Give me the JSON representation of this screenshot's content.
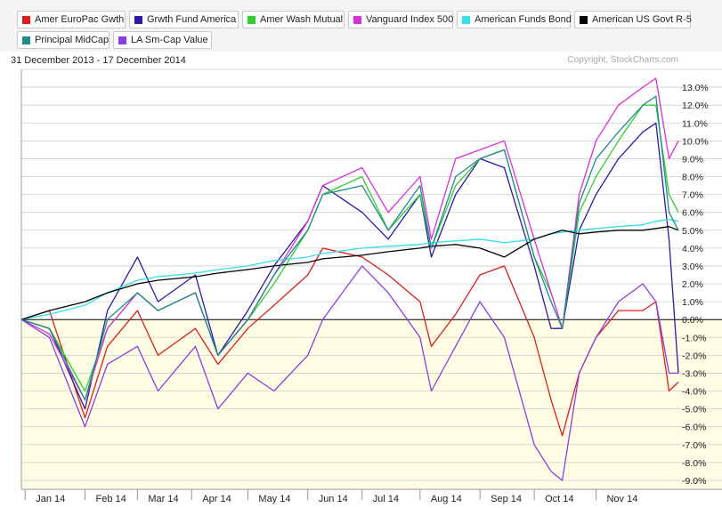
{
  "legend": {
    "items": [
      {
        "label": "Amer EuroPac Gwth",
        "color": "#dd1e1e"
      },
      {
        "label": "Grwth Fund America",
        "color": "#2a1aa6"
      },
      {
        "label": "Amer Wash Mutual",
        "color": "#2fcf2f"
      },
      {
        "label": "Vanguard Index 500",
        "color": "#dd2ddd"
      },
      {
        "label": "American Funds Bond",
        "color": "#35dfe3"
      },
      {
        "label": "American US Govt R-5",
        "color": "#000000"
      },
      {
        "label": "Principal MidCap",
        "color": "#1f8b8b"
      },
      {
        "label": "LA Sm-Cap Value",
        "color": "#8a3ee0"
      }
    ]
  },
  "chart_data": {
    "type": "line",
    "date_range": "31 December 2013 - 17 December 2014",
    "copyright": "Copyright, StockCharts.com",
    "y_unit": "%",
    "ylim": [
      -9.5,
      14
    ],
    "y_ticks": [
      "13.0%",
      "12.0%",
      "11.0%",
      "10.0%",
      "9.0%",
      "8.0%",
      "7.0%",
      "6.0%",
      "5.0%",
      "4.0%",
      "3.0%",
      "2.0%",
      "1.0%",
      "0.0%",
      "-1.0%",
      "-2.0%",
      "-3.0%",
      "-4.0%",
      "-5.0%",
      "-6.0%",
      "-7.0%",
      "-8.0%",
      "-9.0%"
    ],
    "x_ticks": [
      "Jan 14",
      "Feb 14",
      "Mar 14",
      "Apr 14",
      "May 14",
      "Jun 14",
      "Jul 14",
      "Aug 14",
      "Sep 14",
      "Oct 14",
      "Nov 14"
    ],
    "x_tick_dates": [
      "2014-01-02",
      "2014-02-03",
      "2014-03-03",
      "2014-04-01",
      "2014-05-01",
      "2014-06-02",
      "2014-07-01",
      "2014-08-01",
      "2014-09-02",
      "2014-10-01",
      "2014-11-03"
    ],
    "x_range": [
      "2013-12-31",
      "2014-12-17"
    ],
    "grid": true,
    "background_split_at": 0,
    "series": [
      {
        "name": "Amer EuroPac Gwth",
        "color": "#dd1e1e",
        "x": [
          "2013-12-31",
          "2014-01-15",
          "2014-02-03",
          "2014-02-15",
          "2014-03-03",
          "2014-03-14",
          "2014-04-03",
          "2014-04-15",
          "2014-05-01",
          "2014-05-15",
          "2014-06-02",
          "2014-06-10",
          "2014-07-01",
          "2014-07-15",
          "2014-08-01",
          "2014-08-07",
          "2014-08-20",
          "2014-09-02",
          "2014-09-15",
          "2014-10-01",
          "2014-10-10",
          "2014-10-16",
          "2014-10-25",
          "2014-11-03",
          "2014-11-15",
          "2014-11-28",
          "2014-12-05",
          "2014-12-12",
          "2014-12-17"
        ],
        "y": [
          0,
          0.5,
          -5.5,
          -1.5,
          0.5,
          -2,
          -0.5,
          -2.5,
          -0.5,
          0.8,
          2.5,
          4,
          3.5,
          2.5,
          1,
          -1.5,
          0.3,
          2.5,
          3,
          -1,
          -4.5,
          -6.5,
          -3,
          -1,
          0.5,
          0.5,
          1,
          -4,
          -3.5
        ]
      },
      {
        "name": "Grwth Fund America",
        "color": "#2a1aa6",
        "x": [
          "2013-12-31",
          "2014-01-15",
          "2014-02-03",
          "2014-02-15",
          "2014-03-03",
          "2014-03-14",
          "2014-04-03",
          "2014-04-15",
          "2014-05-01",
          "2014-05-15",
          "2014-06-02",
          "2014-06-10",
          "2014-07-01",
          "2014-07-15",
          "2014-08-01",
          "2014-08-07",
          "2014-08-20",
          "2014-09-02",
          "2014-09-15",
          "2014-10-01",
          "2014-10-10",
          "2014-10-16",
          "2014-10-25",
          "2014-11-03",
          "2014-11-15",
          "2014-11-28",
          "2014-12-05",
          "2014-12-12",
          "2014-12-17"
        ],
        "y": [
          0,
          -0.5,
          -5,
          0.5,
          3.5,
          1,
          2.5,
          -2,
          0.5,
          3,
          5.5,
          7.5,
          6,
          4.5,
          7,
          3.5,
          7,
          9,
          8.5,
          3,
          -0.5,
          -0.5,
          5,
          7,
          9,
          10.5,
          11,
          4.5,
          -3
        ]
      },
      {
        "name": "Amer Wash Mutual",
        "color": "#2fcf2f",
        "x": [
          "2013-12-31",
          "2014-01-15",
          "2014-02-03",
          "2014-02-15",
          "2014-03-03",
          "2014-03-14",
          "2014-04-03",
          "2014-04-15",
          "2014-05-01",
          "2014-05-15",
          "2014-06-02",
          "2014-06-10",
          "2014-07-01",
          "2014-07-15",
          "2014-08-01",
          "2014-08-07",
          "2014-08-20",
          "2014-09-02",
          "2014-09-15",
          "2014-10-01",
          "2014-10-10",
          "2014-10-16",
          "2014-10-25",
          "2014-11-03",
          "2014-11-15",
          "2014-11-28",
          "2014-12-05",
          "2014-12-12",
          "2014-12-17"
        ],
        "y": [
          0,
          -0.5,
          -4,
          -0.5,
          1.5,
          0.5,
          1.5,
          -2,
          0,
          2,
          5,
          7,
          8,
          5,
          7,
          4,
          7.5,
          9,
          9.5,
          3.5,
          1.5,
          -0.5,
          6,
          8,
          10,
          12,
          12,
          7,
          6
        ]
      },
      {
        "name": "Vanguard Index 500",
        "color": "#dd2ddd",
        "x": [
          "2013-12-31",
          "2014-01-15",
          "2014-02-03",
          "2014-02-15",
          "2014-03-03",
          "2014-03-14",
          "2014-04-03",
          "2014-04-15",
          "2014-05-01",
          "2014-05-15",
          "2014-06-02",
          "2014-06-10",
          "2014-07-01",
          "2014-07-15",
          "2014-08-01",
          "2014-08-07",
          "2014-08-20",
          "2014-09-02",
          "2014-09-15",
          "2014-10-01",
          "2014-10-10",
          "2014-10-16",
          "2014-10-25",
          "2014-11-03",
          "2014-11-15",
          "2014-11-28",
          "2014-12-05",
          "2014-12-12",
          "2014-12-17"
        ],
        "y": [
          0,
          -0.8,
          -4.5,
          -0.5,
          1.5,
          0.5,
          1.5,
          -2,
          0,
          2.5,
          5.5,
          7.5,
          8.5,
          6,
          8,
          4.5,
          9,
          9.5,
          10,
          4.5,
          1.5,
          -0.5,
          7,
          10,
          12,
          13,
          13.5,
          9,
          10
        ]
      },
      {
        "name": "American Funds Bond",
        "color": "#35dfe3",
        "x": [
          "2013-12-31",
          "2014-01-15",
          "2014-02-03",
          "2014-02-15",
          "2014-03-03",
          "2014-03-14",
          "2014-04-03",
          "2014-04-15",
          "2014-05-01",
          "2014-05-15",
          "2014-06-02",
          "2014-06-10",
          "2014-07-01",
          "2014-07-15",
          "2014-08-01",
          "2014-08-07",
          "2014-08-20",
          "2014-09-02",
          "2014-09-15",
          "2014-10-01",
          "2014-10-10",
          "2014-10-16",
          "2014-10-25",
          "2014-11-03",
          "2014-11-15",
          "2014-11-28",
          "2014-12-05",
          "2014-12-12",
          "2014-12-17"
        ],
        "y": [
          0,
          0.3,
          0.8,
          1.5,
          2.2,
          2.4,
          2.6,
          2.8,
          3,
          3.3,
          3.5,
          3.7,
          4,
          4.1,
          4.2,
          4.3,
          4.4,
          4.5,
          4.3,
          4.5,
          4.8,
          4.9,
          5,
          5.1,
          5.2,
          5.3,
          5.5,
          5.6,
          5.5
        ]
      },
      {
        "name": "American US Govt R-5",
        "color": "#000000",
        "x": [
          "2013-12-31",
          "2014-01-15",
          "2014-02-03",
          "2014-02-15",
          "2014-03-03",
          "2014-03-14",
          "2014-04-03",
          "2014-04-15",
          "2014-05-01",
          "2014-05-15",
          "2014-06-02",
          "2014-06-10",
          "2014-07-01",
          "2014-07-15",
          "2014-08-01",
          "2014-08-07",
          "2014-08-20",
          "2014-09-02",
          "2014-09-15",
          "2014-10-01",
          "2014-10-10",
          "2014-10-16",
          "2014-10-25",
          "2014-11-03",
          "2014-11-15",
          "2014-11-28",
          "2014-12-05",
          "2014-12-12",
          "2014-12-17"
        ],
        "y": [
          0,
          0.5,
          1,
          1.5,
          2,
          2.2,
          2.4,
          2.6,
          2.8,
          3,
          3.2,
          3.4,
          3.6,
          3.8,
          4,
          4.1,
          4.2,
          4,
          3.5,
          4.5,
          4.8,
          5,
          4.8,
          4.9,
          5,
          5,
          5.1,
          5.2,
          5
        ]
      },
      {
        "name": "Principal MidCap",
        "color": "#1f8b8b",
        "x": [
          "2013-12-31",
          "2014-01-15",
          "2014-02-03",
          "2014-02-15",
          "2014-03-03",
          "2014-03-14",
          "2014-04-03",
          "2014-04-15",
          "2014-05-01",
          "2014-05-15",
          "2014-06-02",
          "2014-06-10",
          "2014-07-01",
          "2014-07-15",
          "2014-08-01",
          "2014-08-07",
          "2014-08-20",
          "2014-09-02",
          "2014-09-15",
          "2014-10-01",
          "2014-10-10",
          "2014-10-16",
          "2014-10-25",
          "2014-11-03",
          "2014-11-15",
          "2014-11-28",
          "2014-12-05",
          "2014-12-12",
          "2014-12-17"
        ],
        "y": [
          0,
          -0.5,
          -4.5,
          0,
          1.5,
          0.5,
          1.5,
          -2,
          0,
          2.5,
          5,
          7,
          7.5,
          5,
          7.5,
          4,
          8,
          9,
          9.5,
          3.5,
          1,
          -0.5,
          6.5,
          9,
          10.5,
          12,
          12.5,
          6,
          5
        ]
      },
      {
        "name": "LA Sm-Cap Value",
        "color": "#8a3ee0",
        "x": [
          "2013-12-31",
          "2014-01-15",
          "2014-02-03",
          "2014-02-15",
          "2014-03-03",
          "2014-03-14",
          "2014-04-03",
          "2014-04-15",
          "2014-05-01",
          "2014-05-15",
          "2014-06-02",
          "2014-06-10",
          "2014-07-01",
          "2014-07-15",
          "2014-08-01",
          "2014-08-07",
          "2014-08-20",
          "2014-09-02",
          "2014-09-15",
          "2014-10-01",
          "2014-10-10",
          "2014-10-16",
          "2014-10-25",
          "2014-11-03",
          "2014-11-15",
          "2014-11-28",
          "2014-12-05",
          "2014-12-12",
          "2014-12-17"
        ],
        "y": [
          0,
          -1,
          -6,
          -2.5,
          -1.5,
          -4,
          -1.5,
          -5,
          -3,
          -4,
          -2,
          0,
          3,
          1.5,
          -1,
          -4,
          -1.5,
          1,
          -1,
          -7,
          -8.5,
          -9,
          -3,
          -1,
          1,
          2,
          1,
          -3,
          -3
        ]
      }
    ]
  }
}
